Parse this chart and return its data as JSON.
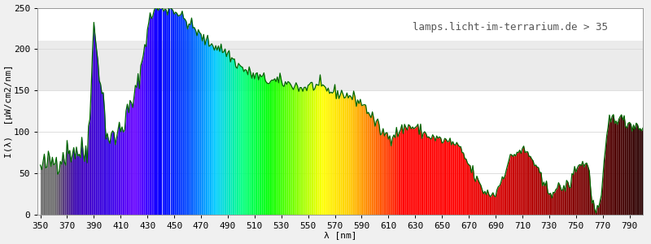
{
  "title": "lamps.licht-im-terrarium.de > 35",
  "xlabel": "λ [nm]",
  "ylabel": "I(λ)  [µW/cm2/nm]",
  "xlim": [
    348,
    800
  ],
  "ylim": [
    0,
    250
  ],
  "xticks": [
    350,
    370,
    390,
    410,
    430,
    450,
    470,
    490,
    510,
    530,
    550,
    570,
    590,
    610,
    630,
    650,
    670,
    690,
    710,
    730,
    750,
    770,
    790
  ],
  "yticks": [
    0,
    50,
    100,
    150,
    200,
    250
  ],
  "background_color": "#f0f0f0",
  "plot_bg_color": "#ffffff",
  "line_color": "#006600",
  "line_width": 0.9,
  "title_fontsize": 9,
  "label_fontsize": 8,
  "tick_fontsize": 8,
  "gray_band1": [
    150,
    195
  ],
  "gray_band2": [
    195,
    210
  ],
  "gray_color": "#ebebeb"
}
